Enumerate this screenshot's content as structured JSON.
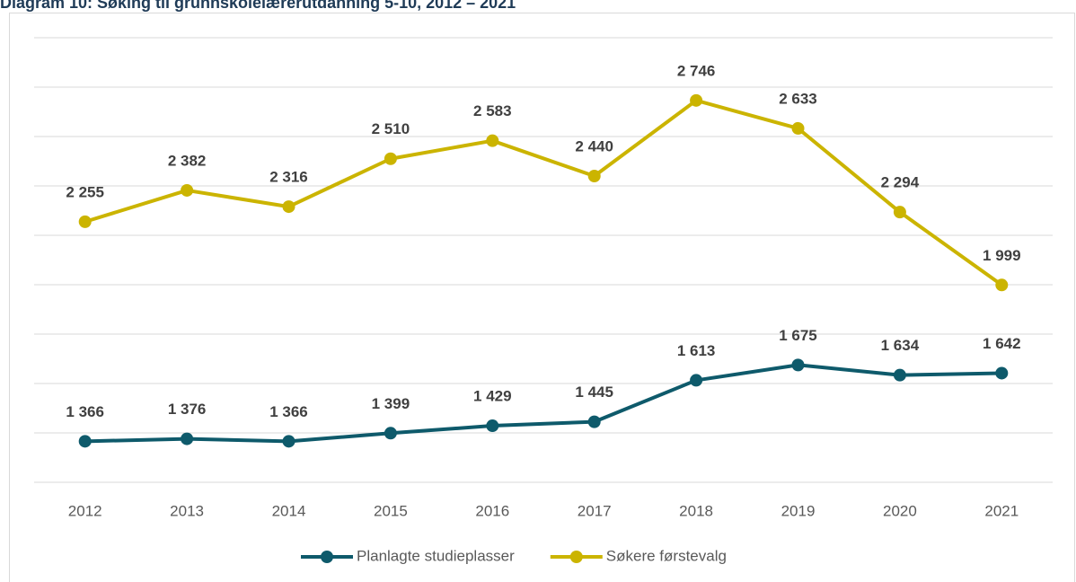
{
  "chart_data": {
    "type": "line",
    "title": "Diagram 10: Søking til grunnskolelærerutdanning 5-10, 2012 – 2021",
    "categories": [
      "2012",
      "2013",
      "2014",
      "2015",
      "2016",
      "2017",
      "2018",
      "2019",
      "2020",
      "2021"
    ],
    "series": [
      {
        "name": "Planlagte studieplasser",
        "color": "#0e5a6b",
        "values": [
          1366,
          1376,
          1366,
          1399,
          1429,
          1445,
          1613,
          1675,
          1634,
          1642
        ],
        "value_labels": [
          "1 366",
          "1 376",
          "1 366",
          "1 399",
          "1 429",
          "1 445",
          "1 613",
          "1 675",
          "1 634",
          "1 642"
        ]
      },
      {
        "name": "Søkere førstevalg",
        "color": "#cbb400",
        "values": [
          2255,
          2382,
          2316,
          2510,
          2583,
          2440,
          2746,
          2633,
          2294,
          1999
        ],
        "value_labels": [
          "2 255",
          "2 382",
          "2 316",
          "2 510",
          "2 583",
          "2 440",
          "2 746",
          "2 633",
          "2 294",
          "1 999"
        ]
      }
    ],
    "ylim": [
      1200,
      3000
    ],
    "yticks": [
      1200,
      1400,
      1600,
      1800,
      2000,
      2200,
      2400,
      2600,
      2800,
      3000
    ],
    "grid": true,
    "legend": "bottom"
  }
}
